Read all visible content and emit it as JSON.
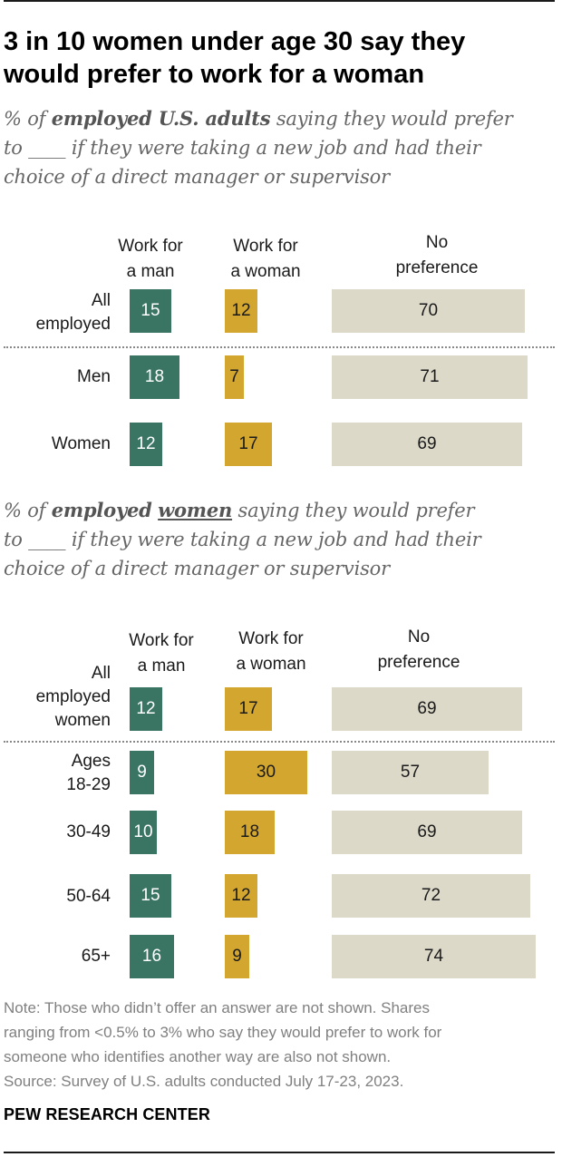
{
  "title_line1": "3 in 10 women under age 30 say they",
  "title_line2": "would prefer to work for a woman",
  "chart_data": [
    {
      "type": "bar",
      "subtitle": {
        "prefix": "% of ",
        "emph": "employed U.S. adults",
        "line1_rest": " saying they would prefer",
        "line2": "to ____ if they were taking a new job and had their",
        "line3": "choice of a direct manager or supervisor"
      },
      "columns": [
        "Work for a man",
        "Work for a woman",
        "No preference"
      ],
      "categories": [
        "All employed",
        "Men",
        "Women"
      ],
      "series": [
        {
          "name": "Work for a man",
          "color": "#3a7563",
          "values": [
            15,
            18,
            12
          ]
        },
        {
          "name": "Work for a woman",
          "color": "#d3a72f",
          "values": [
            12,
            7,
            17
          ]
        },
        {
          "name": "No preference",
          "color": "#dcd9c9",
          "values": [
            70,
            71,
            69
          ]
        }
      ]
    },
    {
      "type": "bar",
      "subtitle": {
        "prefix": "% of ",
        "emph1": "employed",
        "emph2": "women",
        "line1_rest": " saying they would prefer",
        "line2": "to  ____ if they were taking a new job and had their",
        "line3": "choice of a direct manager or supervisor"
      },
      "columns": [
        "Work for a man",
        "Work for a woman",
        "No preference"
      ],
      "categories": [
        "All employed women",
        "Ages 18-29",
        "30-49",
        "50-64",
        "65+"
      ],
      "series": [
        {
          "name": "Work for a man",
          "color": "#3a7563",
          "values": [
            12,
            9,
            10,
            15,
            16
          ]
        },
        {
          "name": "Work for a woman",
          "color": "#d3a72f",
          "values": [
            17,
            30,
            18,
            12,
            9
          ]
        },
        {
          "name": "No preference",
          "color": "#dcd9c9",
          "values": [
            69,
            57,
            69,
            72,
            74
          ]
        }
      ]
    }
  ],
  "labels": {
    "c1_col1_l1": "Work for",
    "c1_col1_l2": "a man",
    "c1_col2_l1": "Work for",
    "c1_col2_l2": "a woman",
    "c1_col3_l1": "No",
    "c1_col3_l2": "preference",
    "c1_row1_l1": "All",
    "c1_row1_l2": "employed",
    "c1_row2": "Men",
    "c1_row3": "Women",
    "c2_col1_l1": "Work for",
    "c2_col1_l2": "a man",
    "c2_col2_l1": "Work for",
    "c2_col2_l2": "a woman",
    "c2_col3_l1": "No",
    "c2_col3_l2": "preference",
    "c2_row1_l1": "All",
    "c2_row1_l2": "employed",
    "c2_row1_l3": "women",
    "c2_row2_l1": "Ages",
    "c2_row2_l2": "18-29",
    "c2_row3": "30-49",
    "c2_row4": "50-64",
    "c2_row5": "65+"
  },
  "note_line1": "Note: Those who didn’t offer an answer are not shown. Shares",
  "note_line2": "ranging from <0.5% to 3% who say they would prefer to work for",
  "note_line3": "someone who identifies another way are also not shown.",
  "source": "Source: Survey of U.S. adults conducted July 17-23, 2023.",
  "logo": "PEW RESEARCH CENTER"
}
